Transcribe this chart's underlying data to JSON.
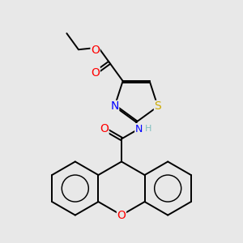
{
  "bg_color": "#e8e8e8",
  "bond_color": "#000000",
  "bond_width": 1.4,
  "dbo": 0.055,
  "atom_colors": {
    "O": "#ff0000",
    "N": "#0000ff",
    "S": "#ccaa00",
    "H": "#7fbfbf",
    "C": "#000000"
  },
  "font_size": 9,
  "fig_size": [
    3.0,
    3.0
  ],
  "dpi": 100
}
